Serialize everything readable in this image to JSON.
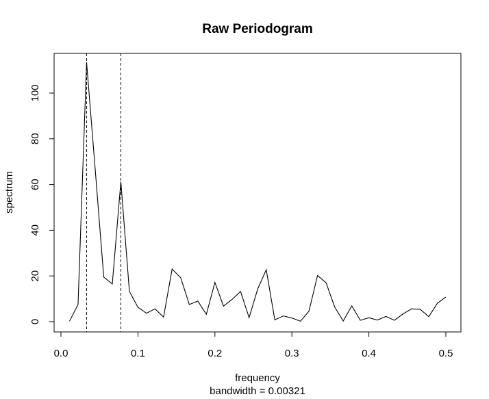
{
  "chart_data": {
    "type": "line",
    "title": "Raw Periodogram",
    "xlabel": "frequency",
    "sublabel": "bandwidth = 0.00321",
    "ylabel": "spectrum",
    "xlim": [
      0.0,
      0.5
    ],
    "ylim": [
      0,
      110
    ],
    "xticks": [
      "0.0",
      "0.1",
      "0.2",
      "0.3",
      "0.4",
      "0.5"
    ],
    "yticks": [
      "0",
      "20",
      "40",
      "60",
      "80",
      "100"
    ],
    "grid": false,
    "line_color": "#000000",
    "reference_lines": [
      0.0333,
      0.0778
    ],
    "x": [
      0.0111,
      0.0222,
      0.0333,
      0.0444,
      0.0556,
      0.0667,
      0.0778,
      0.0889,
      0.1,
      0.1111,
      0.1222,
      0.1333,
      0.1444,
      0.1556,
      0.1667,
      0.1778,
      0.1889,
      0.2,
      0.2111,
      0.2222,
      0.2333,
      0.2444,
      0.2556,
      0.2667,
      0.2778,
      0.2889,
      0.3,
      0.3111,
      0.3222,
      0.3333,
      0.3444,
      0.3556,
      0.3667,
      0.3778,
      0.3889,
      0.4,
      0.4111,
      0.4222,
      0.4333,
      0.4444,
      0.4556,
      0.4667,
      0.4778,
      0.4889,
      0.5
    ],
    "y": [
      0.2,
      7.5,
      113.5,
      67.0,
      19.5,
      16.5,
      61.2,
      13.3,
      6.3,
      3.7,
      5.6,
      2.0,
      23.0,
      19.2,
      7.5,
      9.0,
      3.2,
      17.2,
      6.8,
      9.7,
      13.2,
      1.8,
      14.3,
      22.7,
      0.8,
      2.5,
      1.6,
      0.2,
      4.6,
      20.2,
      17.0,
      6.4,
      0.3,
      6.9,
      0.6,
      1.7,
      0.7,
      2.3,
      0.6,
      3.4,
      5.6,
      5.4,
      2.2,
      8.0,
      10.8
    ]
  }
}
